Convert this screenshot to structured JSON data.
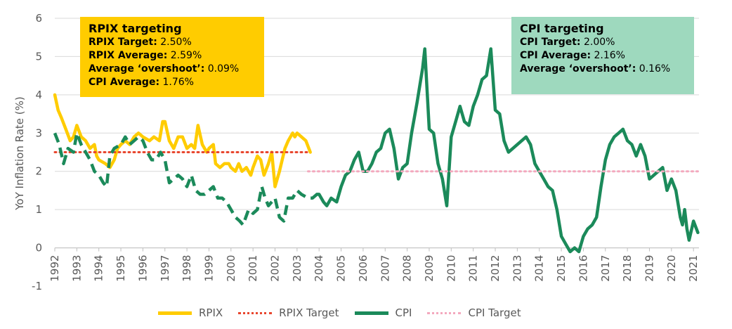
{
  "chart_data": {
    "type": "line",
    "title": "",
    "ylabel": "YoY Inflation Rate (%)",
    "xlabel": "",
    "ylim": [
      -1,
      6
    ],
    "xlim": [
      1992,
      2021.25
    ],
    "yticks": [
      -1,
      0,
      1,
      2,
      3,
      4,
      5,
      6
    ],
    "xticks": [
      "1992",
      "1993",
      "1994",
      "1995",
      "1996",
      "1997",
      "1998",
      "1999",
      "2000",
      "2001",
      "2002",
      "2003",
      "2004",
      "2005",
      "2006",
      "2007",
      "2008",
      "2009",
      "2010",
      "2011",
      "2012",
      "2013",
      "2014",
      "2015",
      "2016",
      "2017",
      "2018",
      "2019",
      "2020",
      "2021"
    ],
    "grid": "horizontal",
    "legend_position": "bottom",
    "series": [
      {
        "name": "RPIX",
        "color": "#FFCC00",
        "style": "solid",
        "points": [
          [
            1992.0,
            4.0
          ],
          [
            1992.15,
            3.6
          ],
          [
            1992.3,
            3.4
          ],
          [
            1992.5,
            3.1
          ],
          [
            1992.7,
            2.8
          ],
          [
            1992.85,
            2.9
          ],
          [
            1993.0,
            3.2
          ],
          [
            1993.2,
            2.9
          ],
          [
            1993.4,
            2.8
          ],
          [
            1993.6,
            2.6
          ],
          [
            1993.8,
            2.7
          ],
          [
            1993.9,
            2.4
          ],
          [
            1994.0,
            2.3
          ],
          [
            1994.3,
            2.2
          ],
          [
            1994.5,
            2.1
          ],
          [
            1994.7,
            2.3
          ],
          [
            1994.85,
            2.6
          ],
          [
            1995.0,
            2.7
          ],
          [
            1995.2,
            2.8
          ],
          [
            1995.4,
            2.7
          ],
          [
            1995.6,
            2.9
          ],
          [
            1995.8,
            3.0
          ],
          [
            1996.0,
            2.9
          ],
          [
            1996.3,
            2.8
          ],
          [
            1996.5,
            2.9
          ],
          [
            1996.75,
            2.8
          ],
          [
            1996.9,
            3.3
          ],
          [
            1997.0,
            3.3
          ],
          [
            1997.2,
            2.8
          ],
          [
            1997.4,
            2.6
          ],
          [
            1997.6,
            2.9
          ],
          [
            1997.8,
            2.9
          ],
          [
            1998.0,
            2.6
          ],
          [
            1998.2,
            2.7
          ],
          [
            1998.35,
            2.6
          ],
          [
            1998.5,
            3.2
          ],
          [
            1998.7,
            2.7
          ],
          [
            1998.9,
            2.5
          ],
          [
            1999.0,
            2.6
          ],
          [
            1999.2,
            2.7
          ],
          [
            1999.3,
            2.2
          ],
          [
            1999.5,
            2.1
          ],
          [
            1999.7,
            2.2
          ],
          [
            1999.9,
            2.2
          ],
          [
            2000.0,
            2.1
          ],
          [
            2000.2,
            2.0
          ],
          [
            2000.35,
            2.2
          ],
          [
            2000.5,
            2.0
          ],
          [
            2000.7,
            2.1
          ],
          [
            2000.9,
            1.9
          ],
          [
            2001.0,
            2.1
          ],
          [
            2001.2,
            2.4
          ],
          [
            2001.35,
            2.3
          ],
          [
            2001.5,
            1.9
          ],
          [
            2001.7,
            2.2
          ],
          [
            2001.85,
            2.5
          ],
          [
            2002.0,
            1.6
          ],
          [
            2002.2,
            2.0
          ],
          [
            2002.45,
            2.6
          ],
          [
            2002.6,
            2.8
          ],
          [
            2002.8,
            3.0
          ],
          [
            2002.9,
            2.9
          ],
          [
            2003.0,
            3.0
          ],
          [
            2003.2,
            2.9
          ],
          [
            2003.4,
            2.8
          ],
          [
            2003.6,
            2.5
          ]
        ]
      },
      {
        "name": "RPIX Target",
        "color": "#E8462E",
        "style": "dotted",
        "points": [
          [
            1992.0,
            2.5
          ],
          [
            2003.6,
            2.5
          ]
        ]
      },
      {
        "name": "CPI",
        "color": "#1B8A5A",
        "style": "dashed-then-solid",
        "solid_from": 2003.9,
        "points": [
          [
            1992.0,
            3.0
          ],
          [
            1992.2,
            2.7
          ],
          [
            1992.4,
            2.2
          ],
          [
            1992.6,
            2.6
          ],
          [
            1992.85,
            2.5
          ],
          [
            1993.0,
            3.0
          ],
          [
            1993.2,
            2.7
          ],
          [
            1993.4,
            2.5
          ],
          [
            1993.6,
            2.3
          ],
          [
            1993.8,
            2.0
          ],
          [
            1994.0,
            1.9
          ],
          [
            1994.2,
            1.7
          ],
          [
            1994.35,
            1.6
          ],
          [
            1994.5,
            2.4
          ],
          [
            1994.7,
            2.6
          ],
          [
            1995.0,
            2.7
          ],
          [
            1995.2,
            2.9
          ],
          [
            1995.4,
            2.7
          ],
          [
            1995.6,
            2.8
          ],
          [
            1995.8,
            2.9
          ],
          [
            1996.0,
            2.8
          ],
          [
            1996.2,
            2.5
          ],
          [
            1996.4,
            2.3
          ],
          [
            1996.6,
            2.3
          ],
          [
            1996.8,
            2.5
          ],
          [
            1997.0,
            2.3
          ],
          [
            1997.2,
            1.7
          ],
          [
            1997.4,
            1.8
          ],
          [
            1997.6,
            1.9
          ],
          [
            1997.8,
            1.8
          ],
          [
            1998.0,
            1.6
          ],
          [
            1998.2,
            1.9
          ],
          [
            1998.4,
            1.5
          ],
          [
            1998.6,
            1.4
          ],
          [
            1998.8,
            1.4
          ],
          [
            1999.0,
            1.5
          ],
          [
            1999.2,
            1.6
          ],
          [
            1999.4,
            1.3
          ],
          [
            1999.6,
            1.3
          ],
          [
            1999.8,
            1.2
          ],
          [
            2000.0,
            1.0
          ],
          [
            2000.2,
            0.8
          ],
          [
            2000.4,
            0.7
          ],
          [
            2000.55,
            0.6
          ],
          [
            2000.8,
            1.0
          ],
          [
            2001.0,
            0.9
          ],
          [
            2001.2,
            1.0
          ],
          [
            2001.4,
            1.6
          ],
          [
            2001.55,
            1.3
          ],
          [
            2001.7,
            1.1
          ],
          [
            2002.0,
            1.3
          ],
          [
            2002.2,
            0.8
          ],
          [
            2002.4,
            0.7
          ],
          [
            2002.6,
            1.3
          ],
          [
            2002.8,
            1.3
          ],
          [
            2003.0,
            1.5
          ],
          [
            2003.2,
            1.4
          ],
          [
            2003.5,
            1.3
          ],
          [
            2003.7,
            1.3
          ],
          [
            2003.9,
            1.4
          ],
          [
            2004.0,
            1.4
          ],
          [
            2004.2,
            1.2
          ],
          [
            2004.35,
            1.1
          ],
          [
            2004.55,
            1.3
          ],
          [
            2004.8,
            1.2
          ],
          [
            2005.0,
            1.6
          ],
          [
            2005.2,
            1.9
          ],
          [
            2005.4,
            2.0
          ],
          [
            2005.6,
            2.3
          ],
          [
            2005.8,
            2.5
          ],
          [
            2006.0,
            2.0
          ],
          [
            2006.2,
            2.0
          ],
          [
            2006.4,
            2.2
          ],
          [
            2006.6,
            2.5
          ],
          [
            2006.8,
            2.6
          ],
          [
            2007.0,
            3.0
          ],
          [
            2007.2,
            3.1
          ],
          [
            2007.4,
            2.6
          ],
          [
            2007.6,
            1.8
          ],
          [
            2007.8,
            2.1
          ],
          [
            2008.0,
            2.2
          ],
          [
            2008.2,
            3.0
          ],
          [
            2008.45,
            3.8
          ],
          [
            2008.7,
            4.7
          ],
          [
            2008.8,
            5.2
          ],
          [
            2009.0,
            3.1
          ],
          [
            2009.2,
            3.0
          ],
          [
            2009.4,
            2.2
          ],
          [
            2009.6,
            1.8
          ],
          [
            2009.8,
            1.1
          ],
          [
            2010.0,
            2.9
          ],
          [
            2010.2,
            3.3
          ],
          [
            2010.4,
            3.7
          ],
          [
            2010.6,
            3.3
          ],
          [
            2010.8,
            3.2
          ],
          [
            2011.0,
            3.7
          ],
          [
            2011.2,
            4.0
          ],
          [
            2011.4,
            4.4
          ],
          [
            2011.6,
            4.5
          ],
          [
            2011.8,
            5.2
          ],
          [
            2012.0,
            3.6
          ],
          [
            2012.2,
            3.5
          ],
          [
            2012.4,
            2.8
          ],
          [
            2012.6,
            2.5
          ],
          [
            2012.8,
            2.6
          ],
          [
            2013.0,
            2.7
          ],
          [
            2013.2,
            2.8
          ],
          [
            2013.4,
            2.9
          ],
          [
            2013.6,
            2.7
          ],
          [
            2013.8,
            2.2
          ],
          [
            2014.0,
            2.0
          ],
          [
            2014.2,
            1.8
          ],
          [
            2014.4,
            1.6
          ],
          [
            2014.6,
            1.5
          ],
          [
            2014.8,
            1.0
          ],
          [
            2015.0,
            0.3
          ],
          [
            2015.2,
            0.1
          ],
          [
            2015.4,
            -0.1
          ],
          [
            2015.6,
            0.0
          ],
          [
            2015.8,
            -0.1
          ],
          [
            2016.0,
            0.3
          ],
          [
            2016.2,
            0.5
          ],
          [
            2016.4,
            0.6
          ],
          [
            2016.6,
            0.8
          ],
          [
            2016.8,
            1.6
          ],
          [
            2017.0,
            2.3
          ],
          [
            2017.2,
            2.7
          ],
          [
            2017.4,
            2.9
          ],
          [
            2017.6,
            3.0
          ],
          [
            2017.8,
            3.1
          ],
          [
            2018.0,
            2.8
          ],
          [
            2018.2,
            2.7
          ],
          [
            2018.4,
            2.4
          ],
          [
            2018.6,
            2.7
          ],
          [
            2018.8,
            2.4
          ],
          [
            2019.0,
            1.8
          ],
          [
            2019.2,
            1.9
          ],
          [
            2019.4,
            2.0
          ],
          [
            2019.6,
            2.1
          ],
          [
            2019.8,
            1.5
          ],
          [
            2020.0,
            1.8
          ],
          [
            2020.2,
            1.5
          ],
          [
            2020.4,
            0.8
          ],
          [
            2020.5,
            0.6
          ],
          [
            2020.6,
            1.0
          ],
          [
            2020.7,
            0.5
          ],
          [
            2020.8,
            0.2
          ],
          [
            2021.0,
            0.7
          ],
          [
            2021.2,
            0.4
          ]
        ]
      },
      {
        "name": "CPI Target",
        "color": "#F4A9BE",
        "style": "dotted",
        "points": [
          [
            2003.5,
            2.0
          ],
          [
            2021.2,
            2.0
          ]
        ]
      }
    ]
  },
  "annotations": {
    "rpix": {
      "title": "RPIX targeting",
      "lines": [
        {
          "label": "RPIX Target:",
          "value": " 2.50%"
        },
        {
          "label": "RPIX Average:",
          "value": " 2.59%"
        },
        {
          "label": "Average ‘overshoot’:",
          "value": " 0.09%"
        },
        {
          "label": "CPI Average:",
          "value": " 1.76%"
        }
      ],
      "color": "#FFCC00"
    },
    "cpi": {
      "title": "CPI targeting",
      "lines": [
        {
          "label": "CPI Target:",
          "value": " 2.00%"
        },
        {
          "label": "CPI Average:",
          "value": " 2.16%"
        },
        {
          "label": "Average ‘overshoot’:",
          "value": " 0.16%"
        }
      ],
      "color": "#9ED9BE"
    }
  },
  "legend": [
    {
      "label": "RPIX",
      "color": "#FFCC00",
      "style": "solid"
    },
    {
      "label": "RPIX Target",
      "color": "#E8462E",
      "style": "dotted"
    },
    {
      "label": "CPI",
      "color": "#1B8A5A",
      "style": "solid"
    },
    {
      "label": "CPI Target",
      "color": "#F4A9BE",
      "style": "dotted"
    }
  ]
}
